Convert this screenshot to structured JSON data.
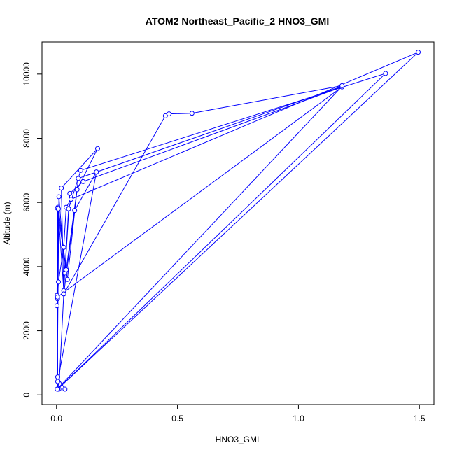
{
  "chart_data": {
    "type": "line",
    "title": "ATOM2 Northeast_Pacific_2 HNO3_GMI",
    "xlabel": "HNO3_GMI",
    "ylabel": "Altitude (m)",
    "xlim": [
      -0.06,
      1.56
    ],
    "ylim": [
      -300,
      11000
    ],
    "x_ticks": [
      0.0,
      0.5,
      1.0,
      1.5
    ],
    "x_tick_labels": [
      "0.0",
      "0.5",
      "1.0",
      "1.5"
    ],
    "y_ticks": [
      0,
      2000,
      4000,
      6000,
      8000,
      10000
    ],
    "y_tick_labels": [
      "0",
      "2000",
      "4000",
      "6000",
      "8000",
      "10000"
    ],
    "grid": false,
    "marker": "open-circle",
    "series": [
      {
        "color": "#0000ff",
        "x": [
          0.035,
          0.005,
          0.01,
          0.03,
          0.075,
          0.165,
          0.005,
          0.002,
          0.008,
          0.03,
          0.04,
          0.06,
          1.495,
          0.005,
          0.004,
          0.006,
          0.03,
          0.05,
          0.1,
          1.36,
          0.005,
          0.002,
          0.004,
          0.045,
          0.09,
          1.18,
          0.003,
          0.01,
          0.035,
          0.055,
          0.11,
          1.18,
          0.004,
          0.008,
          0.04,
          0.085,
          0.17,
          0.02,
          0.03,
          0.45,
          0.465,
          0.56,
          1.18
        ],
        "y": [
          180,
          560,
          180,
          3150,
          5750,
          6950,
          420,
          2780,
          3520,
          4600,
          5850,
          6100,
          10680,
          180,
          3000,
          5850,
          3250,
          5800,
          7000,
          10020,
          180,
          3100,
          5820,
          3600,
          6750,
          9620,
          180,
          6180,
          3800,
          6280,
          6650,
          9600,
          3050,
          5800,
          3900,
          6400,
          7680,
          6450,
          3150,
          8700,
          8760,
          8780,
          9640
        ]
      }
    ]
  }
}
